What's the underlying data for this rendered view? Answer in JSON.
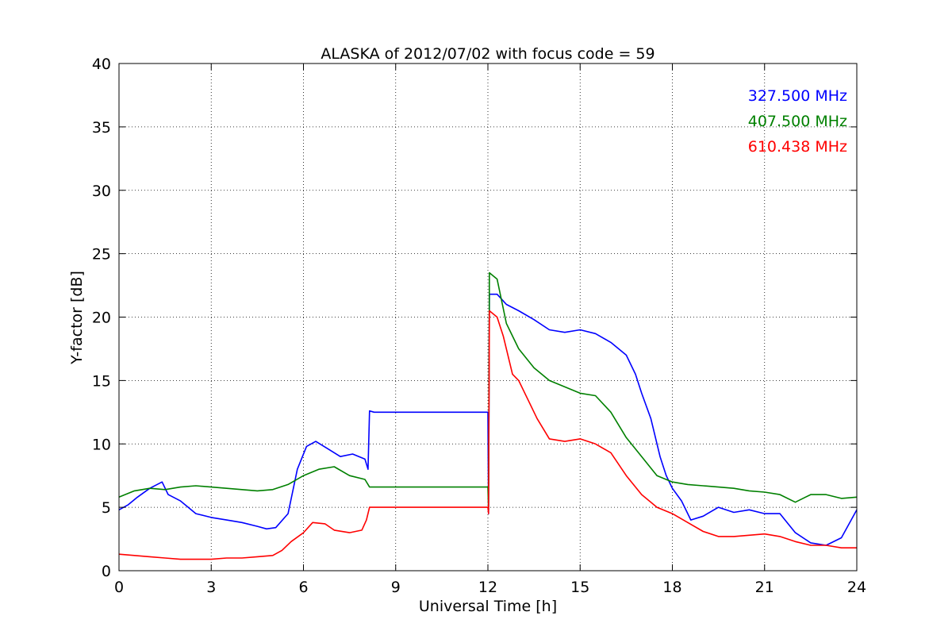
{
  "chart_data": {
    "type": "line",
    "title": "ALASKA of 2012/07/02 with focus code = 59",
    "xlabel": "Universal Time [h]",
    "ylabel": "Y-factor [dB]",
    "xlim": [
      0,
      24
    ],
    "ylim": [
      0,
      40
    ],
    "xticks": [
      0,
      3,
      6,
      9,
      12,
      15,
      18,
      21,
      24
    ],
    "yticks": [
      0,
      5,
      10,
      15,
      20,
      25,
      30,
      35,
      40
    ],
    "grid": true,
    "legend": "top-right",
    "series": [
      {
        "name": "327.500 MHz",
        "color": "#0000ff",
        "x": [
          0,
          0.3,
          0.6,
          1,
          1.4,
          1.6,
          2,
          2.5,
          3,
          3.5,
          4,
          4.5,
          4.8,
          5.1,
          5.5,
          5.8,
          6.1,
          6.4,
          6.8,
          7.2,
          7.6,
          8,
          8.1,
          8.15,
          8.3,
          10,
          12,
          12.02,
          12.05,
          12.3,
          12.6,
          13,
          13.5,
          14,
          14.5,
          15,
          15.5,
          16,
          16.5,
          16.8,
          17,
          17.3,
          17.6,
          17.8,
          18,
          18.3,
          18.6,
          19,
          19.5,
          20,
          20.5,
          21,
          21.5,
          22,
          22.5,
          23,
          23.5,
          24
        ],
        "y": [
          4.8,
          5.2,
          5.8,
          6.5,
          7.0,
          6.0,
          5.5,
          4.5,
          4.2,
          4.0,
          3.8,
          3.5,
          3.3,
          3.4,
          4.5,
          8.0,
          9.8,
          10.2,
          9.6,
          9.0,
          9.2,
          8.8,
          8.0,
          12.6,
          12.5,
          12.5,
          12.5,
          4.5,
          21.8,
          21.8,
          21.0,
          20.5,
          19.8,
          19.0,
          18.8,
          19.0,
          18.7,
          18.0,
          17.0,
          15.5,
          14.0,
          12.0,
          9.0,
          7.5,
          6.5,
          5.5,
          4.0,
          4.3,
          5.0,
          4.6,
          4.8,
          4.5,
          4.5,
          3.0,
          2.2,
          2.0,
          2.6,
          4.8
        ]
      },
      {
        "name": "407.500 MHz",
        "color": "#008000",
        "x": [
          0,
          0.5,
          1,
          1.5,
          2,
          2.5,
          3,
          3.5,
          4,
          4.5,
          5,
          5.5,
          6,
          6.5,
          7,
          7.5,
          8,
          8.15,
          8.3,
          10,
          12,
          12.02,
          12.05,
          12.3,
          12.6,
          13,
          13.5,
          14,
          14.5,
          15,
          15.5,
          16,
          16.5,
          17,
          17.5,
          18,
          18.5,
          19,
          19.5,
          20,
          20.5,
          21,
          21.5,
          22,
          22.5,
          23,
          23.5,
          24
        ],
        "y": [
          5.8,
          6.3,
          6.5,
          6.4,
          6.6,
          6.7,
          6.6,
          6.5,
          6.4,
          6.3,
          6.4,
          6.8,
          7.5,
          8.0,
          8.2,
          7.5,
          7.2,
          6.6,
          6.6,
          6.6,
          6.6,
          4.8,
          23.5,
          23.0,
          19.5,
          17.5,
          16.0,
          15.0,
          14.5,
          14.0,
          13.8,
          12.5,
          10.5,
          9.0,
          7.5,
          7.0,
          6.8,
          6.7,
          6.6,
          6.5,
          6.3,
          6.2,
          6.0,
          5.4,
          6.0,
          6.0,
          5.7,
          5.8
        ]
      },
      {
        "name": "610.438 MHz",
        "color": "#ff0000",
        "x": [
          0,
          0.5,
          1,
          1.5,
          2,
          2.5,
          3,
          3.5,
          4,
          4.5,
          5,
          5.3,
          5.6,
          6,
          6.3,
          6.7,
          7,
          7.5,
          7.9,
          8.05,
          8.15,
          8.3,
          10,
          12,
          12.02,
          12.05,
          12.3,
          12.5,
          12.8,
          13,
          13.3,
          13.6,
          14,
          14.5,
          15,
          15.5,
          16,
          16.5,
          17,
          17.5,
          18,
          18.5,
          19,
          19.5,
          20,
          20.5,
          21,
          21.5,
          22,
          22.5,
          23,
          23.5,
          24
        ],
        "y": [
          1.3,
          1.2,
          1.1,
          1.0,
          0.9,
          0.9,
          0.9,
          1.0,
          1.0,
          1.1,
          1.2,
          1.6,
          2.3,
          3.0,
          3.8,
          3.7,
          3.2,
          3.0,
          3.2,
          4.0,
          5.0,
          5.0,
          5.0,
          5.0,
          4.5,
          20.5,
          20.0,
          18.5,
          15.5,
          15.0,
          13.5,
          12.0,
          10.4,
          10.2,
          10.4,
          10.0,
          9.3,
          7.5,
          6.0,
          5.0,
          4.5,
          3.8,
          3.1,
          2.7,
          2.7,
          2.8,
          2.9,
          2.7,
          2.3,
          2.0,
          2.0,
          1.8,
          1.8
        ]
      }
    ]
  }
}
